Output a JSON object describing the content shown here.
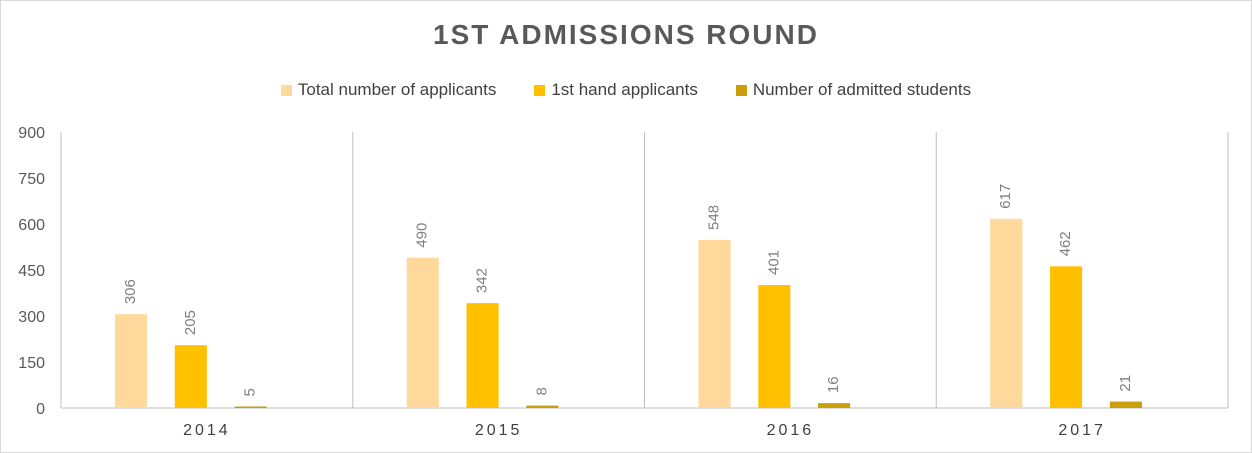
{
  "chart_data": {
    "type": "bar",
    "title": "1ST ADMISSIONS  ROUND",
    "xlabel": "",
    "ylabel": "",
    "categories": [
      "2014",
      "2015",
      "2016",
      "2017"
    ],
    "series": [
      {
        "name": "Total number of applicants",
        "color": "#ffd99b",
        "values": [
          306,
          490,
          548,
          617
        ]
      },
      {
        "name": "1st hand applicants",
        "color": "#ffc000",
        "values": [
          205,
          342,
          401,
          462
        ]
      },
      {
        "name": "Number of admitted students",
        "color": "#c9a00a",
        "values": [
          5,
          8,
          16,
          21
        ]
      }
    ],
    "ylim": [
      0,
      900
    ],
    "yticks": [
      "0",
      "150",
      "300",
      "450",
      "600",
      "750",
      "900"
    ],
    "legend_position": "top",
    "grid": false,
    "category_separators": true,
    "data_labels": true
  }
}
